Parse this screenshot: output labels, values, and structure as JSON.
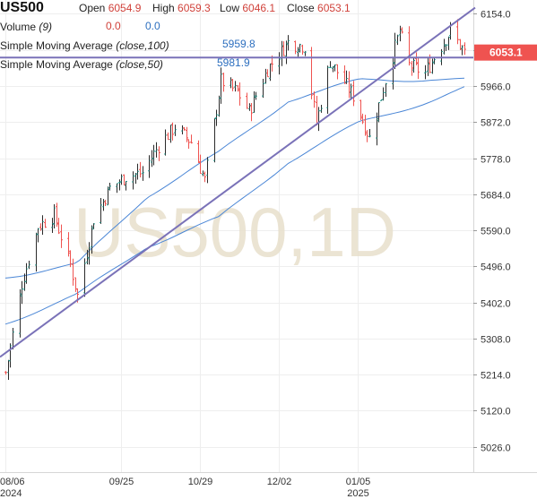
{
  "header": {
    "symbol": "US500",
    "open_label": "Open",
    "open_value": "6054.9",
    "high_label": "High",
    "high_value": "6059.3",
    "low_label": "Low",
    "low_value": "6046.1",
    "close_label": "Close",
    "close_value": "6053.1"
  },
  "indicators": {
    "volume_label": "Volume",
    "volume_period": "(9)",
    "volume_value_1": "0.0",
    "volume_value_2": "0.0",
    "sma100_name": "Simple Moving Average",
    "sma100_params": "(close,100)",
    "sma100_value": "5959.8",
    "sma50_name": "Simple Moving Average",
    "sma50_params": "(close,50)",
    "sma50_value": "5981.9"
  },
  "watermark": "US500,1D",
  "last_price_badge": "6053.1",
  "colors": {
    "up": "#26a69a",
    "down": "#ef5350",
    "ma_line": "#4a86d6",
    "trend_line": "#7a72b8",
    "badge": "#ef5350"
  },
  "chart_data": {
    "type": "candlestick",
    "y_ticks": [
      6154.0,
      6060.0,
      5966.0,
      5872.0,
      5778.0,
      5684.0,
      5590.0,
      5496.0,
      5402.0,
      5308.0,
      5214.0,
      5120.0,
      5026.0
    ],
    "ylim": [
      4960,
      6190
    ],
    "x_tick_labels": [
      {
        "label": "08/06",
        "sub": "2024",
        "date": "2024-08-06"
      },
      {
        "label": "09/25",
        "sub": "",
        "date": "2024-09-25"
      },
      {
        "label": "10/29",
        "sub": "",
        "date": "2024-10-29"
      },
      {
        "label": "12/02",
        "sub": "",
        "date": "2024-12-02"
      },
      {
        "label": "01/05",
        "sub": "2025",
        "date": "2025-01-05"
      }
    ],
    "x_range": [
      "2024-08-06",
      "2025-02-20"
    ],
    "series_close_approx": [
      [
        "2024-08-06",
        5220
      ],
      [
        "2024-08-13",
        5450
      ],
      [
        "2024-08-20",
        5600
      ],
      [
        "2024-08-27",
        5630
      ],
      [
        "2024-09-03",
        5500
      ],
      [
        "2024-09-06",
        5420
      ],
      [
        "2024-09-13",
        5620
      ],
      [
        "2024-09-20",
        5700
      ],
      [
        "2024-09-27",
        5730
      ],
      [
        "2024-10-04",
        5740
      ],
      [
        "2024-10-11",
        5810
      ],
      [
        "2024-10-18",
        5860
      ],
      [
        "2024-10-25",
        5820
      ],
      [
        "2024-10-31",
        5720
      ],
      [
        "2024-11-07",
        5980
      ],
      [
        "2024-11-14",
        5950
      ],
      [
        "2024-11-19",
        5900
      ],
      [
        "2024-11-27",
        6010
      ],
      [
        "2024-12-06",
        6080
      ],
      [
        "2024-12-13",
        6070
      ],
      [
        "2024-12-18",
        5870
      ],
      [
        "2024-12-24",
        6030
      ],
      [
        "2025-01-03",
        5940
      ],
      [
        "2025-01-10",
        5830
      ],
      [
        "2025-01-16",
        5960
      ],
      [
        "2025-01-23",
        6110
      ],
      [
        "2025-01-27",
        6020
      ],
      [
        "2025-02-03",
        6000
      ],
      [
        "2025-02-10",
        6070
      ],
      [
        "2025-02-14",
        6110
      ],
      [
        "2025-02-20",
        6053.1
      ]
    ],
    "sma50_approx": [
      [
        "2024-08-06",
        5470
      ],
      [
        "2024-09-06",
        5500
      ],
      [
        "2024-10-06",
        5680
      ],
      [
        "2024-11-06",
        5790
      ],
      [
        "2024-12-06",
        5930
      ],
      [
        "2025-01-06",
        5980
      ],
      [
        "2025-02-06",
        5985
      ],
      [
        "2025-02-20",
        5981.9
      ]
    ],
    "sma100_approx": [
      [
        "2024-08-06",
        5350
      ],
      [
        "2024-09-06",
        5420
      ],
      [
        "2024-10-06",
        5550
      ],
      [
        "2024-11-06",
        5620
      ],
      [
        "2024-12-06",
        5770
      ],
      [
        "2025-01-06",
        5870
      ],
      [
        "2025-02-06",
        5930
      ],
      [
        "2025-02-20",
        5959.8
      ]
    ],
    "trend_lines": [
      {
        "from": [
          "2024-08-06",
          5260
        ],
        "to": [
          "2025-02-20",
          6170
        ]
      },
      {
        "from": [
          "2024-08-06",
          6040
        ],
        "to": [
          "2025-02-20",
          6040
        ]
      }
    ],
    "last_price": 6053.1
  }
}
